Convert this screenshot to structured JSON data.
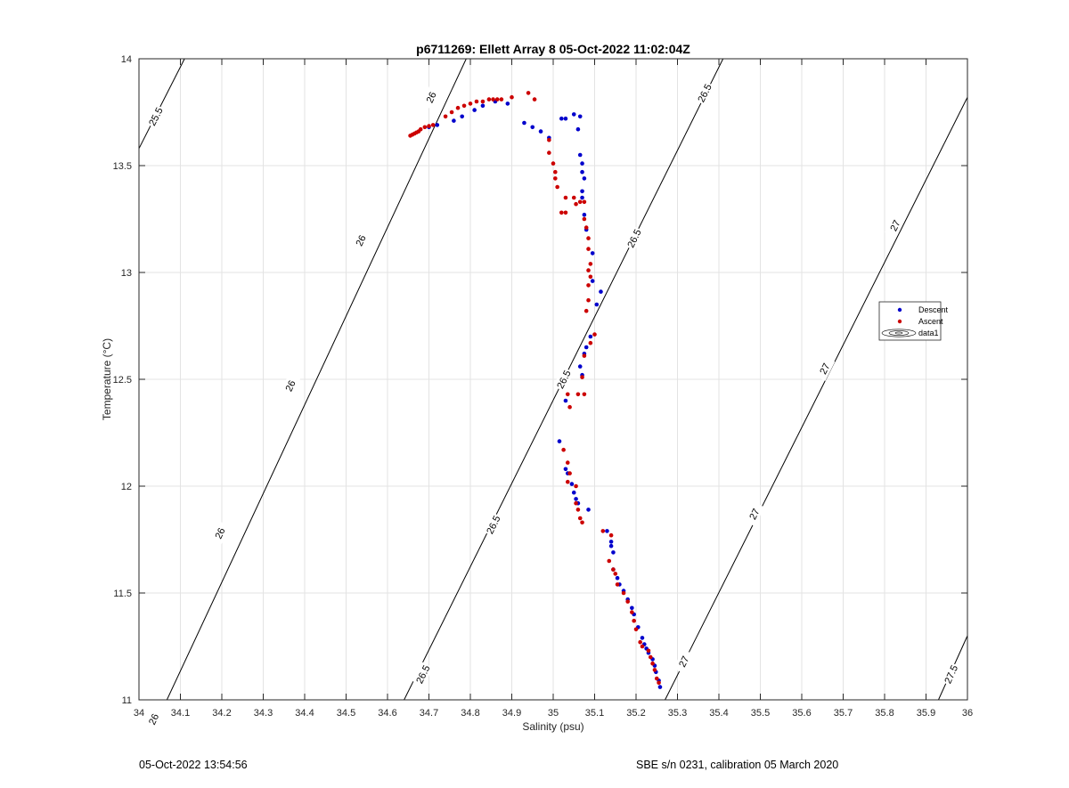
{
  "chart_data": {
    "type": "scatter",
    "title": "p6711269: Ellett Array 8 05-Oct-2022 11:02:04Z",
    "xlabel": "Salinity (psu)",
    "ylabel": "Temperature (°C)",
    "xlim": [
      34,
      36
    ],
    "ylim": [
      11,
      14
    ],
    "xticks": [
      "34",
      "34.1",
      "34.2",
      "34.3",
      "34.4",
      "34.5",
      "34.6",
      "34.7",
      "34.8",
      "34.9",
      "35",
      "35.1",
      "35.2",
      "35.3",
      "35.4",
      "35.5",
      "35.6",
      "35.7",
      "35.8",
      "35.9",
      "36"
    ],
    "yticks": [
      "11",
      "11.5",
      "12",
      "12.5",
      "13",
      "13.5",
      "14"
    ],
    "grid": true,
    "legend_position": "right",
    "legend": [
      "Descent",
      "Ascent",
      "data1"
    ],
    "colors": {
      "descent": "#0000cc",
      "ascent": "#cc0000",
      "contour": "#000000",
      "grid": "#e3e3e3"
    },
    "series": [
      {
        "name": "Descent",
        "points": [
          [
            34.7,
            13.68
          ],
          [
            34.72,
            13.69
          ],
          [
            34.76,
            13.71
          ],
          [
            34.78,
            13.73
          ],
          [
            34.81,
            13.76
          ],
          [
            34.83,
            13.78
          ],
          [
            34.86,
            13.8
          ],
          [
            34.89,
            13.79
          ],
          [
            34.93,
            13.7
          ],
          [
            34.95,
            13.68
          ],
          [
            34.97,
            13.66
          ],
          [
            34.99,
            13.63
          ],
          [
            35.02,
            13.72
          ],
          [
            35.03,
            13.72
          ],
          [
            35.05,
            13.74
          ],
          [
            35.065,
            13.73
          ],
          [
            35.06,
            13.67
          ],
          [
            35.065,
            13.55
          ],
          [
            35.07,
            13.51
          ],
          [
            35.07,
            13.47
          ],
          [
            35.075,
            13.44
          ],
          [
            35.07,
            13.38
          ],
          [
            35.07,
            13.35
          ],
          [
            35.075,
            13.27
          ],
          [
            35.08,
            13.2
          ],
          [
            35.095,
            13.09
          ],
          [
            35.095,
            12.96
          ],
          [
            35.115,
            12.91
          ],
          [
            35.105,
            12.85
          ],
          [
            35.09,
            12.7
          ],
          [
            35.08,
            12.65
          ],
          [
            35.075,
            12.62
          ],
          [
            35.065,
            12.56
          ],
          [
            35.07,
            12.52
          ],
          [
            35.03,
            12.4
          ],
          [
            35.015,
            12.21
          ],
          [
            35.03,
            12.08
          ],
          [
            35.035,
            12.06
          ],
          [
            35.045,
            12.01
          ],
          [
            35.05,
            11.97
          ],
          [
            35.055,
            11.94
          ],
          [
            35.06,
            11.92
          ],
          [
            35.085,
            11.89
          ],
          [
            35.13,
            11.79
          ],
          [
            35.14,
            11.74
          ],
          [
            35.14,
            11.72
          ],
          [
            35.145,
            11.69
          ],
          [
            35.145,
            11.61
          ],
          [
            35.155,
            11.57
          ],
          [
            35.16,
            11.54
          ],
          [
            35.17,
            11.51
          ],
          [
            35.18,
            11.47
          ],
          [
            35.19,
            11.43
          ],
          [
            35.195,
            11.4
          ],
          [
            35.205,
            11.34
          ],
          [
            35.215,
            11.29
          ],
          [
            35.22,
            11.26
          ],
          [
            35.225,
            11.24
          ],
          [
            35.23,
            11.22
          ],
          [
            35.24,
            11.19
          ],
          [
            35.245,
            11.16
          ],
          [
            35.248,
            11.13
          ],
          [
            35.255,
            11.09
          ],
          [
            35.258,
            11.06
          ]
        ]
      },
      {
        "name": "Ascent",
        "points": [
          [
            34.655,
            13.64
          ],
          [
            34.66,
            13.645
          ],
          [
            34.665,
            13.65
          ],
          [
            34.67,
            13.655
          ],
          [
            34.675,
            13.66
          ],
          [
            34.68,
            13.67
          ],
          [
            34.69,
            13.68
          ],
          [
            34.7,
            13.685
          ],
          [
            34.71,
            13.69
          ],
          [
            34.74,
            13.73
          ],
          [
            34.755,
            13.75
          ],
          [
            34.77,
            13.77
          ],
          [
            34.785,
            13.78
          ],
          [
            34.8,
            13.79
          ],
          [
            34.815,
            13.8
          ],
          [
            34.83,
            13.8
          ],
          [
            34.845,
            13.81
          ],
          [
            34.855,
            13.81
          ],
          [
            34.865,
            13.81
          ],
          [
            34.875,
            13.81
          ],
          [
            34.9,
            13.82
          ],
          [
            34.94,
            13.84
          ],
          [
            34.955,
            13.81
          ],
          [
            34.99,
            13.62
          ],
          [
            34.99,
            13.56
          ],
          [
            35.0,
            13.51
          ],
          [
            35.005,
            13.47
          ],
          [
            35.005,
            13.44
          ],
          [
            35.01,
            13.4
          ],
          [
            35.03,
            13.35
          ],
          [
            35.02,
            13.28
          ],
          [
            35.03,
            13.28
          ],
          [
            35.05,
            13.35
          ],
          [
            35.055,
            13.32
          ],
          [
            35.065,
            13.33
          ],
          [
            35.075,
            13.33
          ],
          [
            35.075,
            13.25
          ],
          [
            35.08,
            13.21
          ],
          [
            35.085,
            13.16
          ],
          [
            35.085,
            13.11
          ],
          [
            35.09,
            13.04
          ],
          [
            35.085,
            13.01
          ],
          [
            35.09,
            12.98
          ],
          [
            35.085,
            12.94
          ],
          [
            35.085,
            12.87
          ],
          [
            35.08,
            12.82
          ],
          [
            35.1,
            12.71
          ],
          [
            35.09,
            12.67
          ],
          [
            35.075,
            12.61
          ],
          [
            35.07,
            12.51
          ],
          [
            35.075,
            12.43
          ],
          [
            35.06,
            12.43
          ],
          [
            35.04,
            12.37
          ],
          [
            35.035,
            12.43
          ],
          [
            35.025,
            12.17
          ],
          [
            35.035,
            12.11
          ],
          [
            35.04,
            12.06
          ],
          [
            35.035,
            12.02
          ],
          [
            35.055,
            12.0
          ],
          [
            35.055,
            11.92
          ],
          [
            35.06,
            11.89
          ],
          [
            35.065,
            11.85
          ],
          [
            35.07,
            11.83
          ],
          [
            35.12,
            11.79
          ],
          [
            35.14,
            11.77
          ],
          [
            35.135,
            11.65
          ],
          [
            35.145,
            11.61
          ],
          [
            35.15,
            11.59
          ],
          [
            35.155,
            11.54
          ],
          [
            35.17,
            11.5
          ],
          [
            35.18,
            11.46
          ],
          [
            35.19,
            11.41
          ],
          [
            35.195,
            11.37
          ],
          [
            35.2,
            11.33
          ],
          [
            35.21,
            11.27
          ],
          [
            35.215,
            11.25
          ],
          [
            35.23,
            11.23
          ],
          [
            35.235,
            11.2
          ],
          [
            35.24,
            11.17
          ],
          [
            35.245,
            11.14
          ],
          [
            35.25,
            11.1
          ],
          [
            35.255,
            11.08
          ]
        ]
      }
    ],
    "contours": [
      {
        "level": "25.5",
        "line": [
          [
            34.0,
            13.58
          ],
          [
            34.11,
            14.0
          ]
        ],
        "labels": [
          {
            "text": "25.5",
            "x": 34.04,
            "y": 13.73
          }
        ]
      },
      {
        "level": "26",
        "line": [
          [
            34.0,
            10.72
          ],
          [
            34.79,
            14.0
          ]
        ],
        "labels": [
          {
            "text": "26",
            "x": 34.035,
            "y": 10.91
          },
          {
            "text": "26",
            "x": 34.195,
            "y": 11.78
          },
          {
            "text": "26",
            "x": 34.365,
            "y": 12.47
          },
          {
            "text": "26",
            "x": 34.535,
            "y": 13.15
          },
          {
            "text": "26",
            "x": 34.705,
            "y": 13.82
          }
        ]
      },
      {
        "level": "26.5",
        "line": [
          [
            34.64,
            11.0
          ],
          [
            35.41,
            14.0
          ]
        ],
        "labels": [
          {
            "text": "26.5",
            "x": 34.685,
            "y": 11.12
          },
          {
            "text": "26.5",
            "x": 34.855,
            "y": 11.82
          },
          {
            "text": "26.5",
            "x": 35.025,
            "y": 12.5
          },
          {
            "text": "26.5",
            "x": 35.195,
            "y": 13.16
          },
          {
            "text": "26.5",
            "x": 35.365,
            "y": 13.84
          }
        ]
      },
      {
        "level": "27",
        "line": [
          [
            35.27,
            11.0
          ],
          [
            36.0,
            13.82
          ]
        ],
        "labels": [
          {
            "text": "27",
            "x": 35.315,
            "y": 11.18
          },
          {
            "text": "27",
            "x": 35.485,
            "y": 11.87
          },
          {
            "text": "27",
            "x": 35.655,
            "y": 12.55
          },
          {
            "text": "27",
            "x": 35.825,
            "y": 13.22
          }
        ]
      },
      {
        "level": "27.5",
        "line": [
          [
            35.93,
            11.0
          ],
          [
            36.0,
            11.3
          ]
        ],
        "labels": [
          {
            "text": "27.5",
            "x": 35.96,
            "y": 11.12
          }
        ]
      }
    ]
  },
  "footer": {
    "timestamp": "05-Oct-2022 13:54:56",
    "calibration": "SBE s/n 0231, calibration 05 March 2020"
  }
}
